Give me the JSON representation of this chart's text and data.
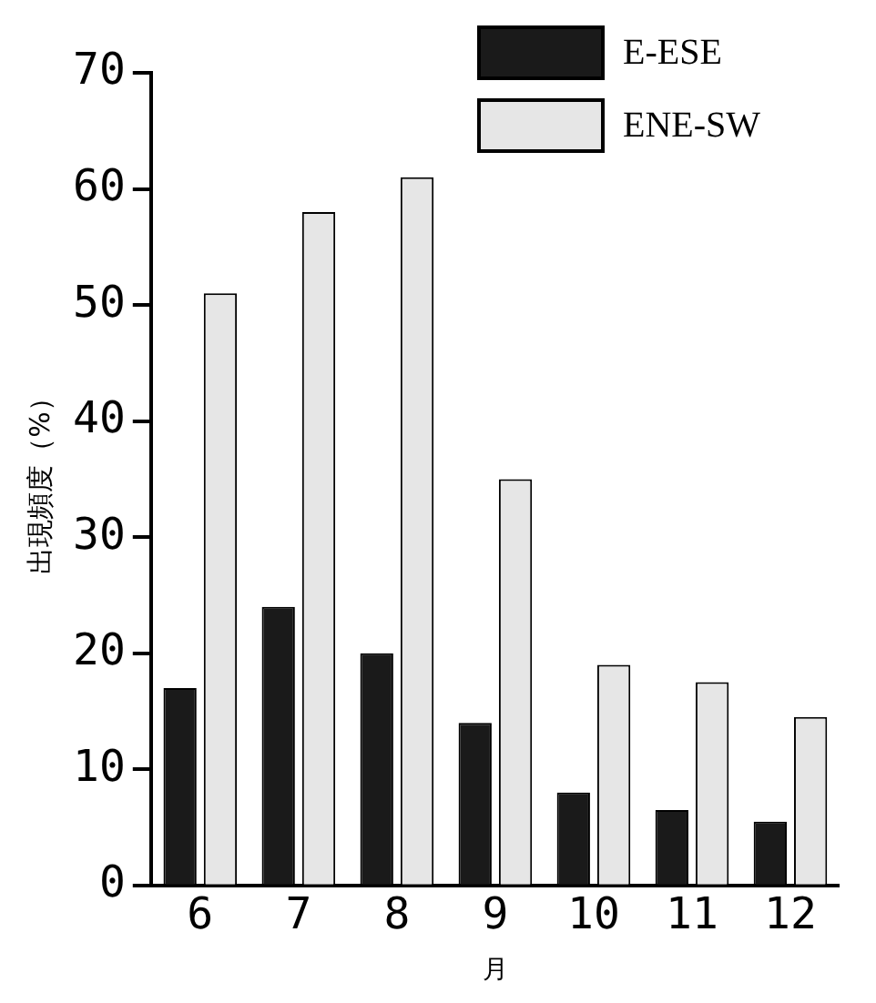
{
  "chart_data": {
    "type": "bar",
    "xlabel": "月",
    "ylabel": "出現頻度（%）",
    "categories": [
      "6",
      "7",
      "8",
      "9",
      "10",
      "11",
      "12"
    ],
    "series": [
      {
        "name": "E-ESE",
        "color": "#1a1a1a",
        "values": [
          17,
          24,
          20,
          14,
          8,
          6.5,
          5.5
        ]
      },
      {
        "name": "ENE-SW",
        "color": "#e6e6e6",
        "values": [
          51,
          58,
          61,
          35,
          19,
          17.5,
          14.5
        ]
      }
    ],
    "ylim": [
      0,
      70
    ],
    "yticks": [
      0,
      10,
      20,
      30,
      40,
      50,
      60,
      70
    ],
    "grid": false,
    "legend": "top right"
  }
}
